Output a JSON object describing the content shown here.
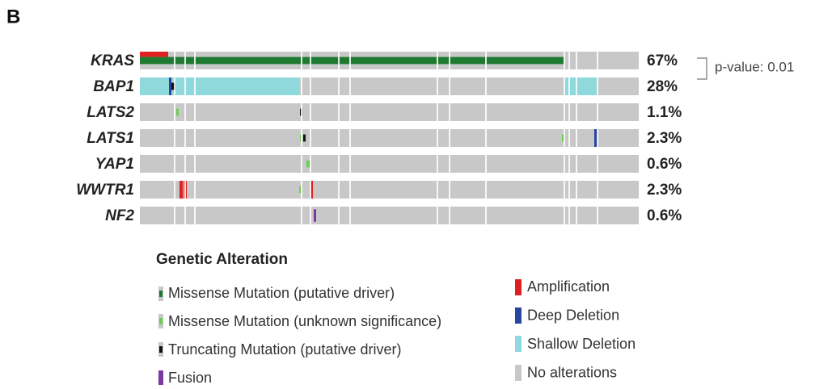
{
  "panel_label": "B",
  "genes": [
    {
      "name": "KRAS",
      "percent": "67%"
    },
    {
      "name": "BAP1",
      "percent": "28%"
    },
    {
      "name": "LATS2",
      "percent": "1.1%"
    },
    {
      "name": "LATS1",
      "percent": "2.3%"
    },
    {
      "name": "YAP1",
      "percent": "0.6%"
    },
    {
      "name": "WWTR1",
      "percent": "2.3%"
    },
    {
      "name": "NF2",
      "percent": "0.6%"
    }
  ],
  "annotation": "p-value: 0.01",
  "legend": {
    "title": "Genetic Alteration",
    "items": [
      "Missense Mutation (putative driver)",
      "Missense Mutation (unknown significance)",
      "Truncating Mutation (putative driver)",
      "Fusion",
      "Amplification",
      "Deep Deletion",
      "Shallow Deletion",
      "No alterations"
    ]
  }
}
